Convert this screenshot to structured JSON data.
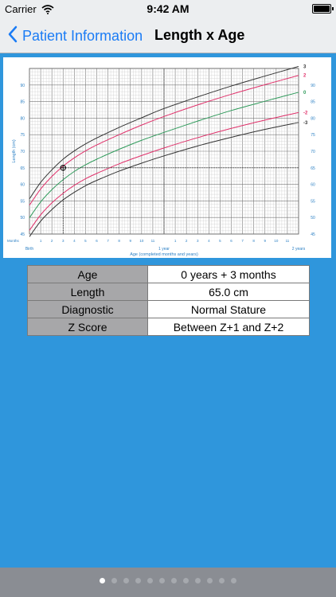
{
  "status_bar": {
    "carrier": "Carrier",
    "time": "9:42 AM"
  },
  "nav": {
    "back_label": "Patient Information",
    "title": "Length x Age"
  },
  "chart_data": {
    "type": "line",
    "xlabel": "Age (completed months and years)",
    "ylabel": "Length (cm)",
    "ylim": [
      45,
      95
    ],
    "xlim": [
      0,
      24
    ],
    "x_tick_prefix": "Months",
    "x_tick_labels": [
      {
        "x": 0,
        "label": "Birth"
      },
      {
        "x": 1,
        "label": "1"
      },
      {
        "x": 2,
        "label": "2"
      },
      {
        "x": 3,
        "label": "3"
      },
      {
        "x": 4,
        "label": "4"
      },
      {
        "x": 5,
        "label": "5"
      },
      {
        "x": 6,
        "label": "6"
      },
      {
        "x": 7,
        "label": "7"
      },
      {
        "x": 8,
        "label": "8"
      },
      {
        "x": 9,
        "label": "9"
      },
      {
        "x": 10,
        "label": "10"
      },
      {
        "x": 11,
        "label": "11"
      },
      {
        "x": 12,
        "label": "1 year"
      },
      {
        "x": 13,
        "label": "1"
      },
      {
        "x": 14,
        "label": "2"
      },
      {
        "x": 15,
        "label": "3"
      },
      {
        "x": 16,
        "label": "4"
      },
      {
        "x": 17,
        "label": "5"
      },
      {
        "x": 18,
        "label": "6"
      },
      {
        "x": 19,
        "label": "7"
      },
      {
        "x": 20,
        "label": "8"
      },
      {
        "x": 21,
        "label": "9"
      },
      {
        "x": 22,
        "label": "10"
      },
      {
        "x": 23,
        "label": "11"
      },
      {
        "x": 24,
        "label": "2 years"
      }
    ],
    "y_ticks": [
      45,
      50,
      55,
      60,
      65,
      70,
      75,
      80,
      85,
      90
    ],
    "ages": [
      0,
      1,
      2,
      3,
      4,
      5,
      6,
      8,
      10,
      12,
      15,
      18,
      21,
      24
    ],
    "series": [
      {
        "name": "3",
        "color": "#333333",
        "values": [
          55.6,
          60.6,
          64.4,
          67.6,
          70.1,
          72.2,
          74.0,
          77.2,
          80.1,
          82.9,
          86.4,
          89.7,
          92.7,
          95.6
        ]
      },
      {
        "name": "2",
        "color": "#e0306a",
        "values": [
          53.7,
          58.6,
          62.4,
          65.5,
          68.0,
          70.1,
          71.9,
          75.0,
          77.9,
          80.5,
          84.0,
          87.2,
          90.1,
          92.9
        ]
      },
      {
        "name": "0",
        "color": "#2e9a5a",
        "values": [
          49.9,
          54.7,
          58.4,
          61.4,
          63.9,
          65.9,
          67.6,
          70.6,
          73.3,
          75.7,
          79.1,
          82.3,
          85.1,
          87.8
        ]
      },
      {
        "name": "-2",
        "color": "#e0306a",
        "values": [
          46.1,
          50.8,
          54.4,
          57.3,
          59.7,
          61.7,
          63.3,
          66.2,
          68.7,
          71.0,
          74.1,
          76.9,
          79.4,
          81.7
        ]
      },
      {
        "name": "-3",
        "color": "#333333",
        "values": [
          44.2,
          48.9,
          52.4,
          55.3,
          57.6,
          59.6,
          61.2,
          64.0,
          66.4,
          68.6,
          71.6,
          74.2,
          76.6,
          78.7
        ]
      }
    ],
    "patient_point": {
      "age_months": 3,
      "length_cm": 65.0
    },
    "grid": true
  },
  "results": [
    {
      "label": "Age",
      "value": "0 years + 3 months"
    },
    {
      "label": "Length",
      "value": "65.0 cm"
    },
    {
      "label": "Diagnostic",
      "value": "Normal Stature"
    },
    {
      "label": "Z Score",
      "value": "Between Z+1 and Z+2"
    }
  ],
  "pager": {
    "count": 12,
    "active": 0
  },
  "icons": {
    "back": "chevron-left-icon",
    "wifi": "wifi-icon",
    "battery": "battery-icon"
  },
  "colors": {
    "accent": "#1b7cf5",
    "background": "#2f96dc",
    "label_cell": "#a7a7a9"
  }
}
